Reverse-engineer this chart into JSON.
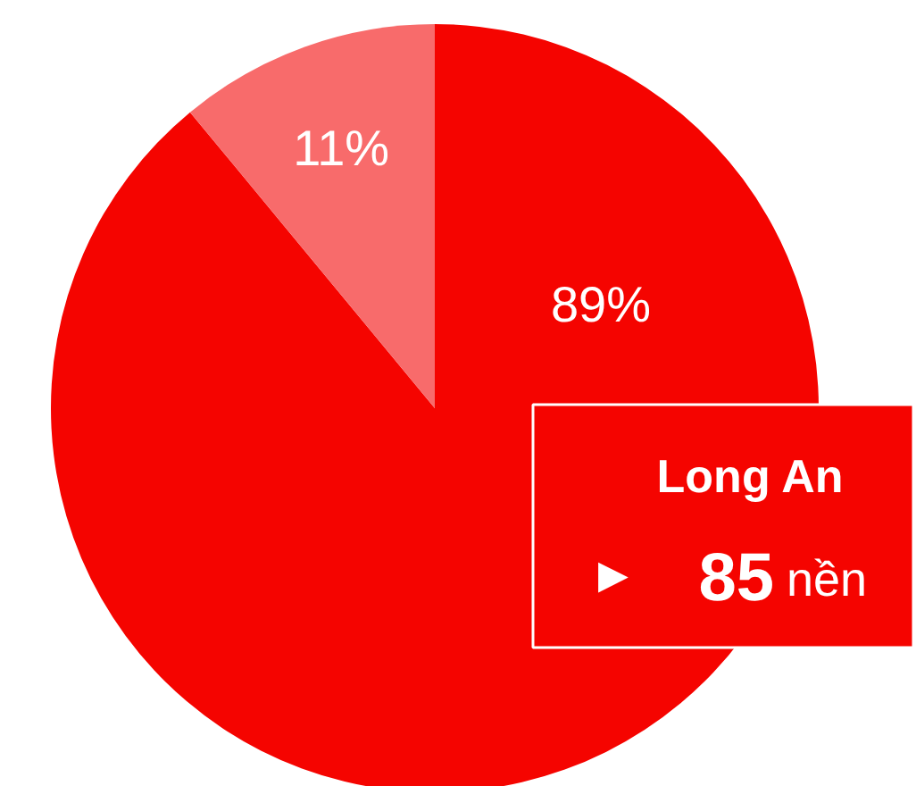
{
  "chart_data": {
    "type": "pie",
    "categories": [
      "Long An",
      null
    ],
    "values": [
      89,
      11
    ],
    "colors": [
      "#f50400",
      "#f86b6b"
    ],
    "value_labels": [
      "89%",
      "11%"
    ],
    "annotations": [
      "▶",
      "85",
      "nền"
    ]
  }
}
